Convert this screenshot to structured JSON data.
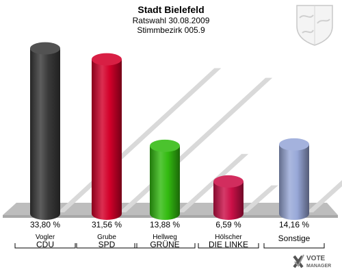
{
  "header": {
    "title": "Stadt Bielefeld",
    "subtitle1": "Ratswahl 30.08.2009",
    "subtitle2": "Stimmbezirk 005.9"
  },
  "logo": {
    "line1": "VOTE",
    "line2": "MANAGER"
  },
  "chart_data": {
    "type": "bar",
    "title": "Stadt Bielefeld",
    "subtitle": "Ratswahl 30.08.2009 / Stimmbezirk 005.9",
    "ylim": [
      0,
      35
    ],
    "grid": false,
    "legend": "none",
    "categories": [
      "CDU",
      "SPD",
      "GRÜNE",
      "DIE LINKE",
      "Sonstige"
    ],
    "candidates": [
      "Vogler",
      "Grube",
      "Hellweg",
      "Hölscher",
      ""
    ],
    "values": [
      33.8,
      31.56,
      13.88,
      6.59,
      14.16
    ],
    "value_labels": [
      "33,80 %",
      "31,56 %",
      "13,88 %",
      "6,59 %",
      "14,16 %"
    ],
    "colors": [
      "#3a3a3a",
      "#d3002a",
      "#33bb11",
      "#cc1048",
      "#98a8d8"
    ]
  }
}
